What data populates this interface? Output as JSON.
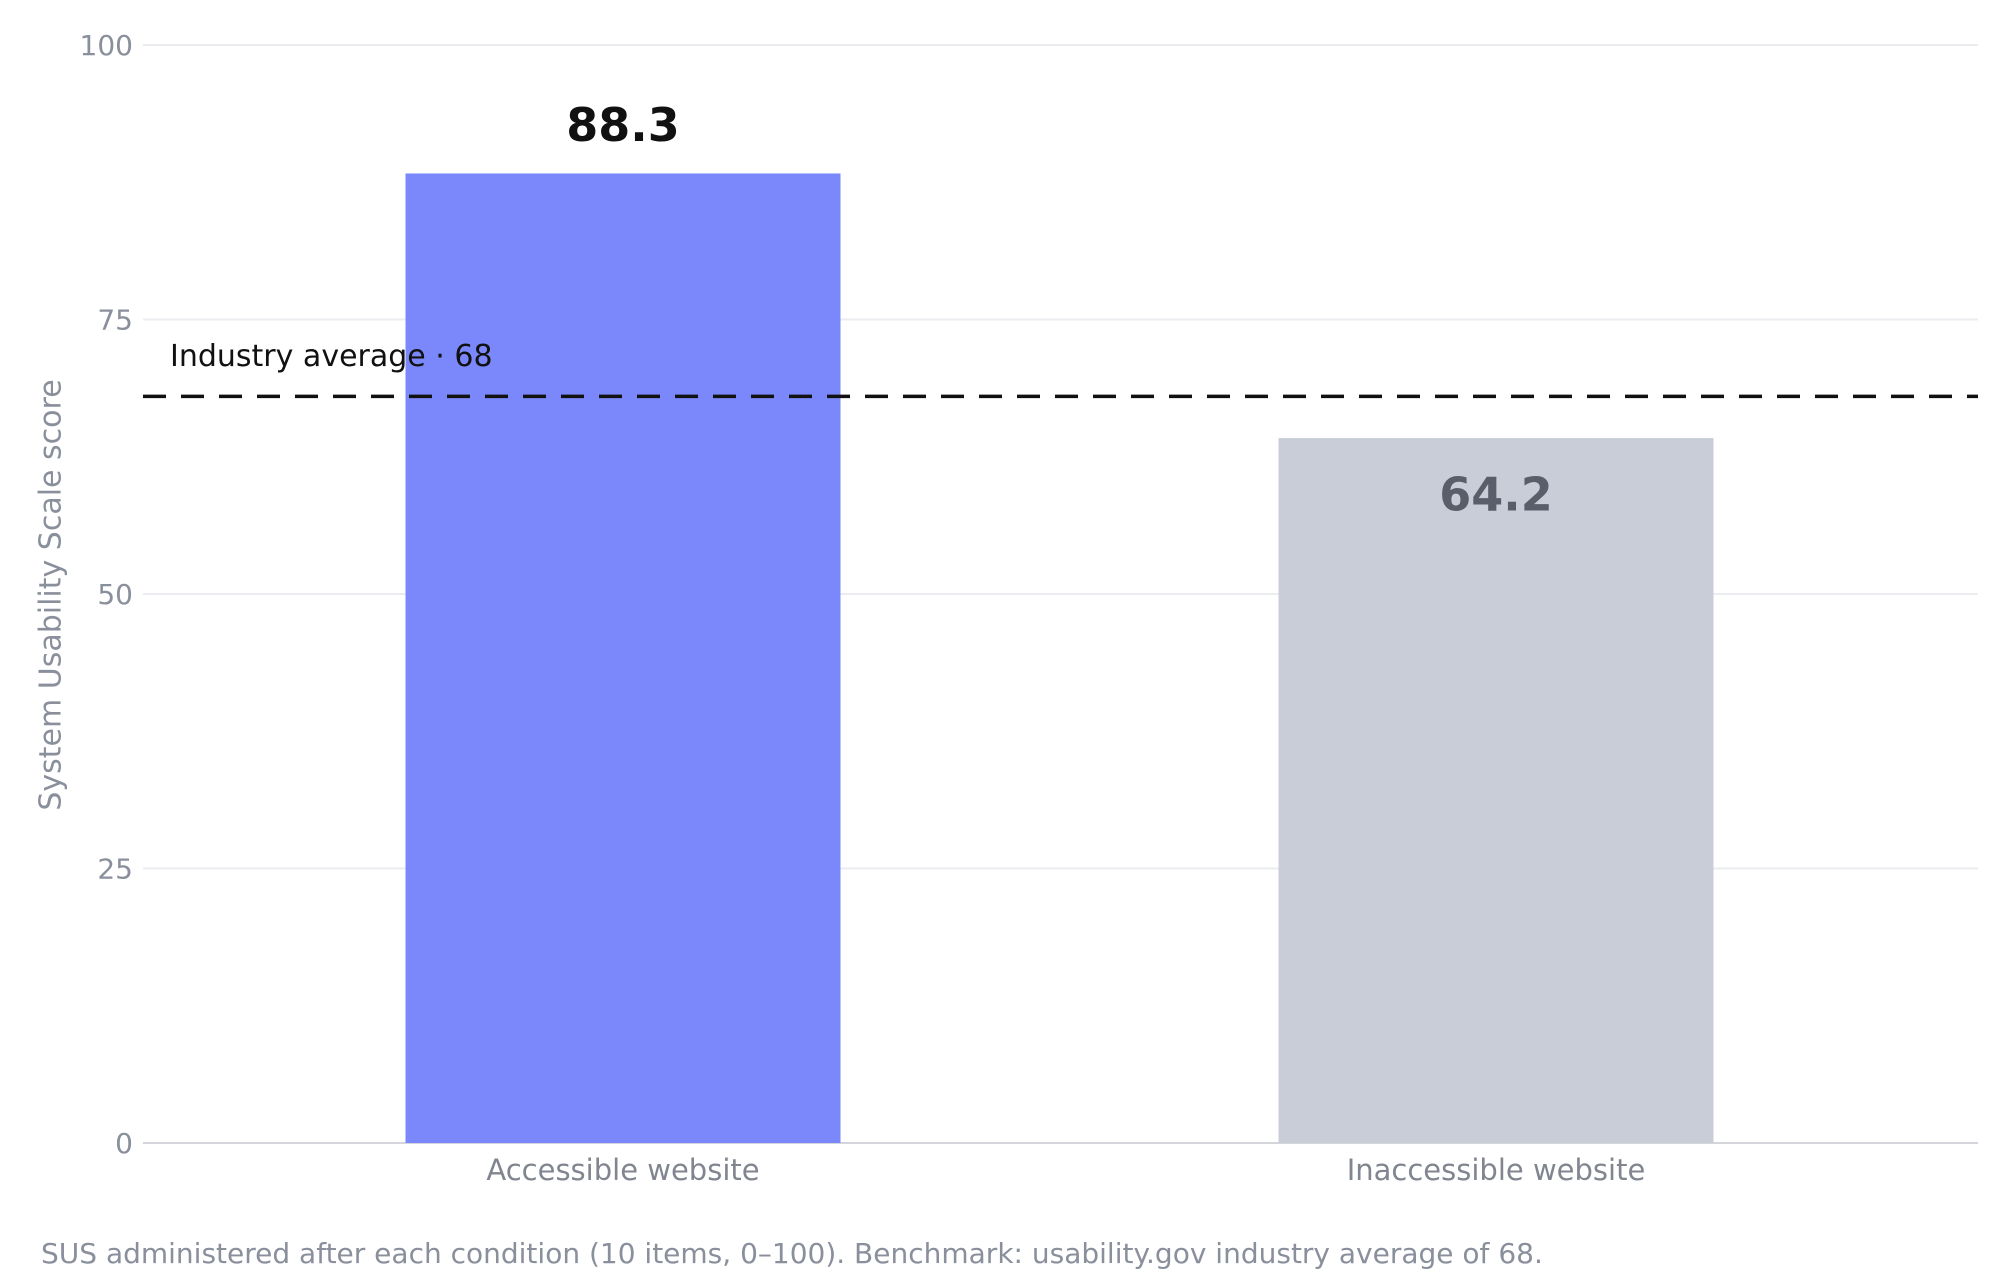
{
  "chart_data": {
    "type": "bar",
    "y_label": "System Usability Scale score",
    "categories": [
      "Accessible website",
      "Inaccessible website"
    ],
    "values": [
      88.3,
      64.2
    ],
    "colors": [
      "#7b88fb",
      "#c9cdd8"
    ],
    "label_colors": [
      "#111111",
      "#5a5e6b"
    ],
    "ylim": [
      0,
      100
    ],
    "yticks": [
      0,
      25,
      50,
      75,
      100
    ],
    "grid": true,
    "reference_line": {
      "value": 68,
      "label": "Industry average · 68",
      "color": "#111111"
    },
    "footnote": "SUS administered after each condition (10 items, 0–100). Benchmark: usability.gov industry average of 68."
  }
}
